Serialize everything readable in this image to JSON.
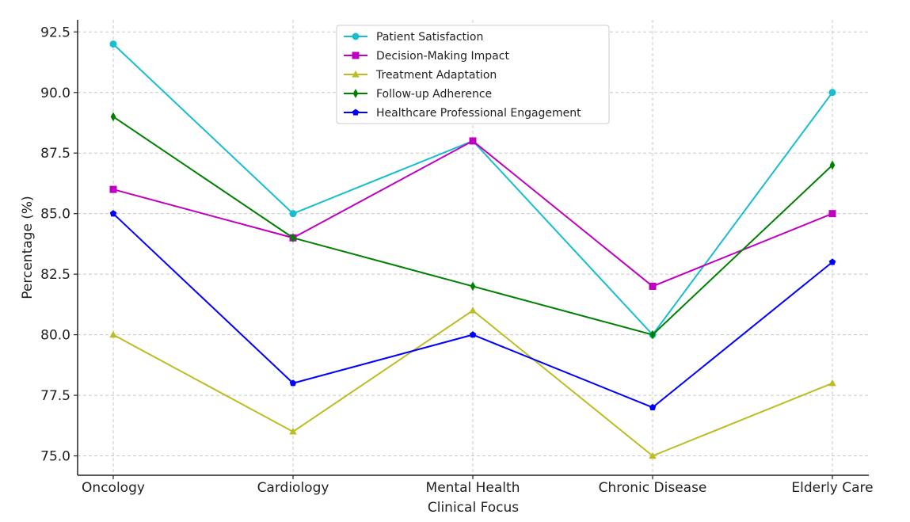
{
  "chart_data": {
    "type": "line",
    "title": "",
    "xlabel": "Clinical Focus",
    "ylabel": "Percentage (%)",
    "categories": [
      "Oncology",
      "Cardiology",
      "Mental Health",
      "Chronic Disease",
      "Elderly Care"
    ],
    "ylim": [
      74.2,
      93.0
    ],
    "yticks": [
      75.0,
      77.5,
      80.0,
      82.5,
      85.0,
      87.5,
      90.0,
      92.5
    ],
    "ytick_labels": [
      "75.0",
      "77.5",
      "80.0",
      "82.5",
      "85.0",
      "87.5",
      "90.0",
      "92.5"
    ],
    "grid": true,
    "legend_position": "top-center",
    "series": [
      {
        "name": "Patient Satisfaction",
        "color": "#17becf",
        "marker": "circle",
        "values": [
          92,
          85,
          88,
          80,
          90
        ]
      },
      {
        "name": "Decision-Making Impact",
        "color": "#c000c0",
        "marker": "square",
        "values": [
          86,
          84,
          88,
          82,
          85
        ]
      },
      {
        "name": "Treatment Adaptation",
        "color": "#bcbd22",
        "marker": "triangle",
        "values": [
          80,
          76,
          81,
          75,
          78
        ]
      },
      {
        "name": "Follow-up Adherence",
        "color": "#008000",
        "marker": "diamond",
        "values": [
          89,
          84,
          82,
          80,
          87
        ]
      },
      {
        "name": "Healthcare Professional Engagement",
        "color": "#0000ff",
        "marker": "pentagon",
        "values": [
          85,
          78,
          80,
          77,
          83
        ]
      }
    ]
  }
}
